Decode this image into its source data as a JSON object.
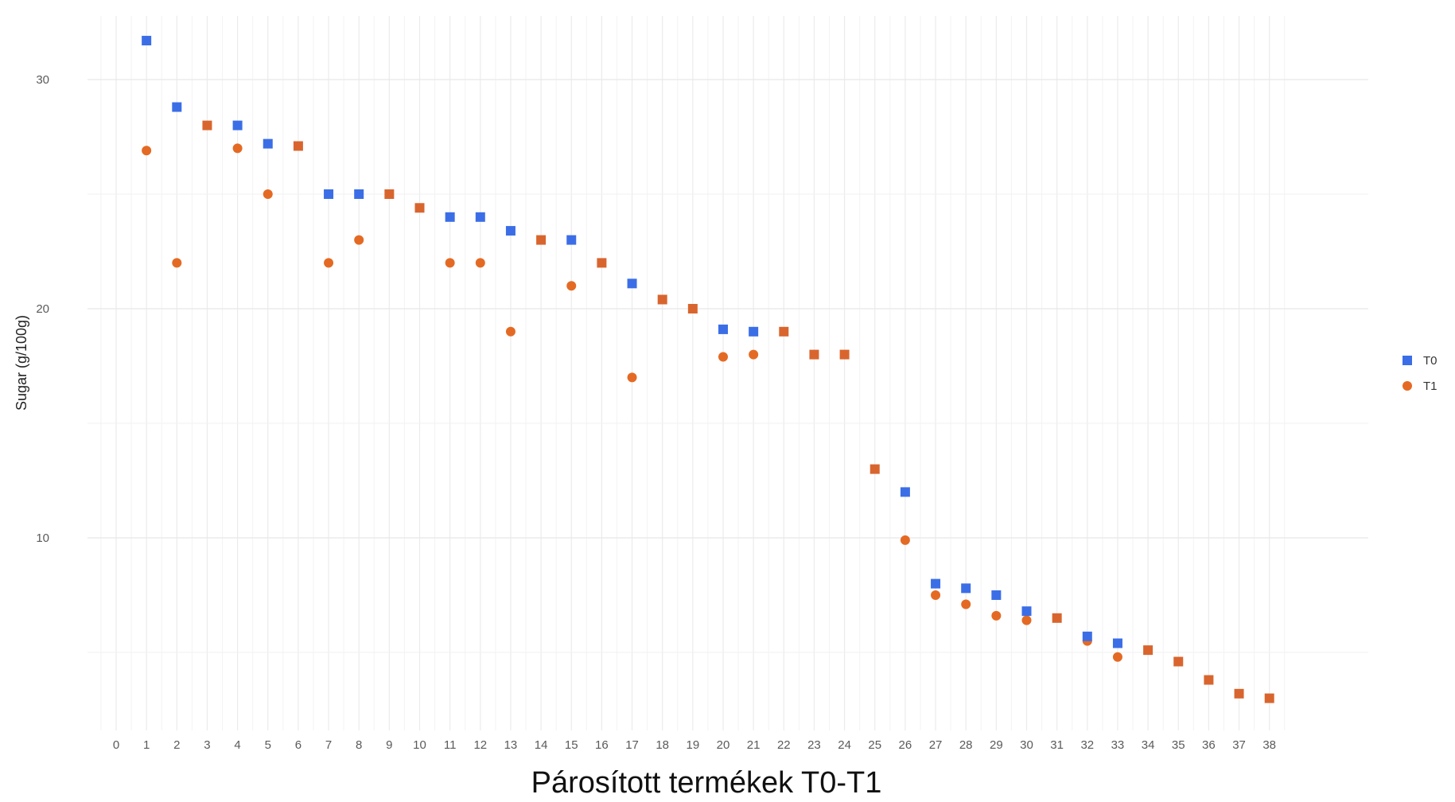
{
  "chart_data": {
    "type": "scatter",
    "title": "",
    "xlabel": "Párosított termékek T0-T1",
    "ylabel": "Sugar (g/100g)",
    "x": [
      1,
      2,
      3,
      4,
      5,
      6,
      7,
      8,
      9,
      10,
      11,
      12,
      13,
      14,
      15,
      16,
      17,
      18,
      19,
      20,
      21,
      22,
      23,
      24,
      25,
      26,
      27,
      28,
      29,
      30,
      31,
      32,
      33,
      34,
      35,
      36,
      37,
      38
    ],
    "x_ticks": [
      "0",
      "1",
      "2",
      "3",
      "4",
      "5",
      "6",
      "7",
      "8",
      "9",
      "10",
      "11",
      "12",
      "13",
      "14",
      "15",
      "16",
      "17",
      "18",
      "19",
      "20",
      "21",
      "22",
      "23",
      "24",
      "25",
      "26",
      "27",
      "28",
      "29",
      "30",
      "31",
      "32",
      "33",
      "34",
      "35",
      "36",
      "37",
      "38"
    ],
    "y_ticks": [
      "10",
      "20",
      "30"
    ],
    "xlim": [
      0,
      38
    ],
    "ylim": [
      3,
      32.5
    ],
    "grid": true,
    "legend_position": "right",
    "series": [
      {
        "name": "T0",
        "marker": "square",
        "color": "#3b6ee6",
        "values": [
          31.7,
          28.8,
          28,
          28,
          27.2,
          27.1,
          25,
          25,
          25,
          24.4,
          24,
          24,
          23.4,
          23,
          23,
          22,
          21.1,
          20.4,
          20,
          19.1,
          19,
          19,
          18,
          18,
          13,
          12,
          8,
          7.8,
          7.5,
          6.8,
          6.5,
          5.7,
          5.4,
          5.1,
          4.6,
          3.8,
          3.2,
          3
        ]
      },
      {
        "name": "T1",
        "marker": "circle",
        "color": "#e46a24",
        "values": [
          26.9,
          22,
          28,
          27,
          25,
          27.1,
          22,
          23,
          25,
          24.4,
          22,
          22,
          19,
          23,
          21,
          22,
          17,
          20.4,
          20,
          17.9,
          18,
          19,
          18,
          18,
          13,
          9.9,
          7.5,
          7.1,
          6.6,
          6.4,
          6.5,
          5.5,
          4.8,
          5.1,
          4.6,
          3.8,
          3.2,
          3
        ]
      }
    ]
  }
}
